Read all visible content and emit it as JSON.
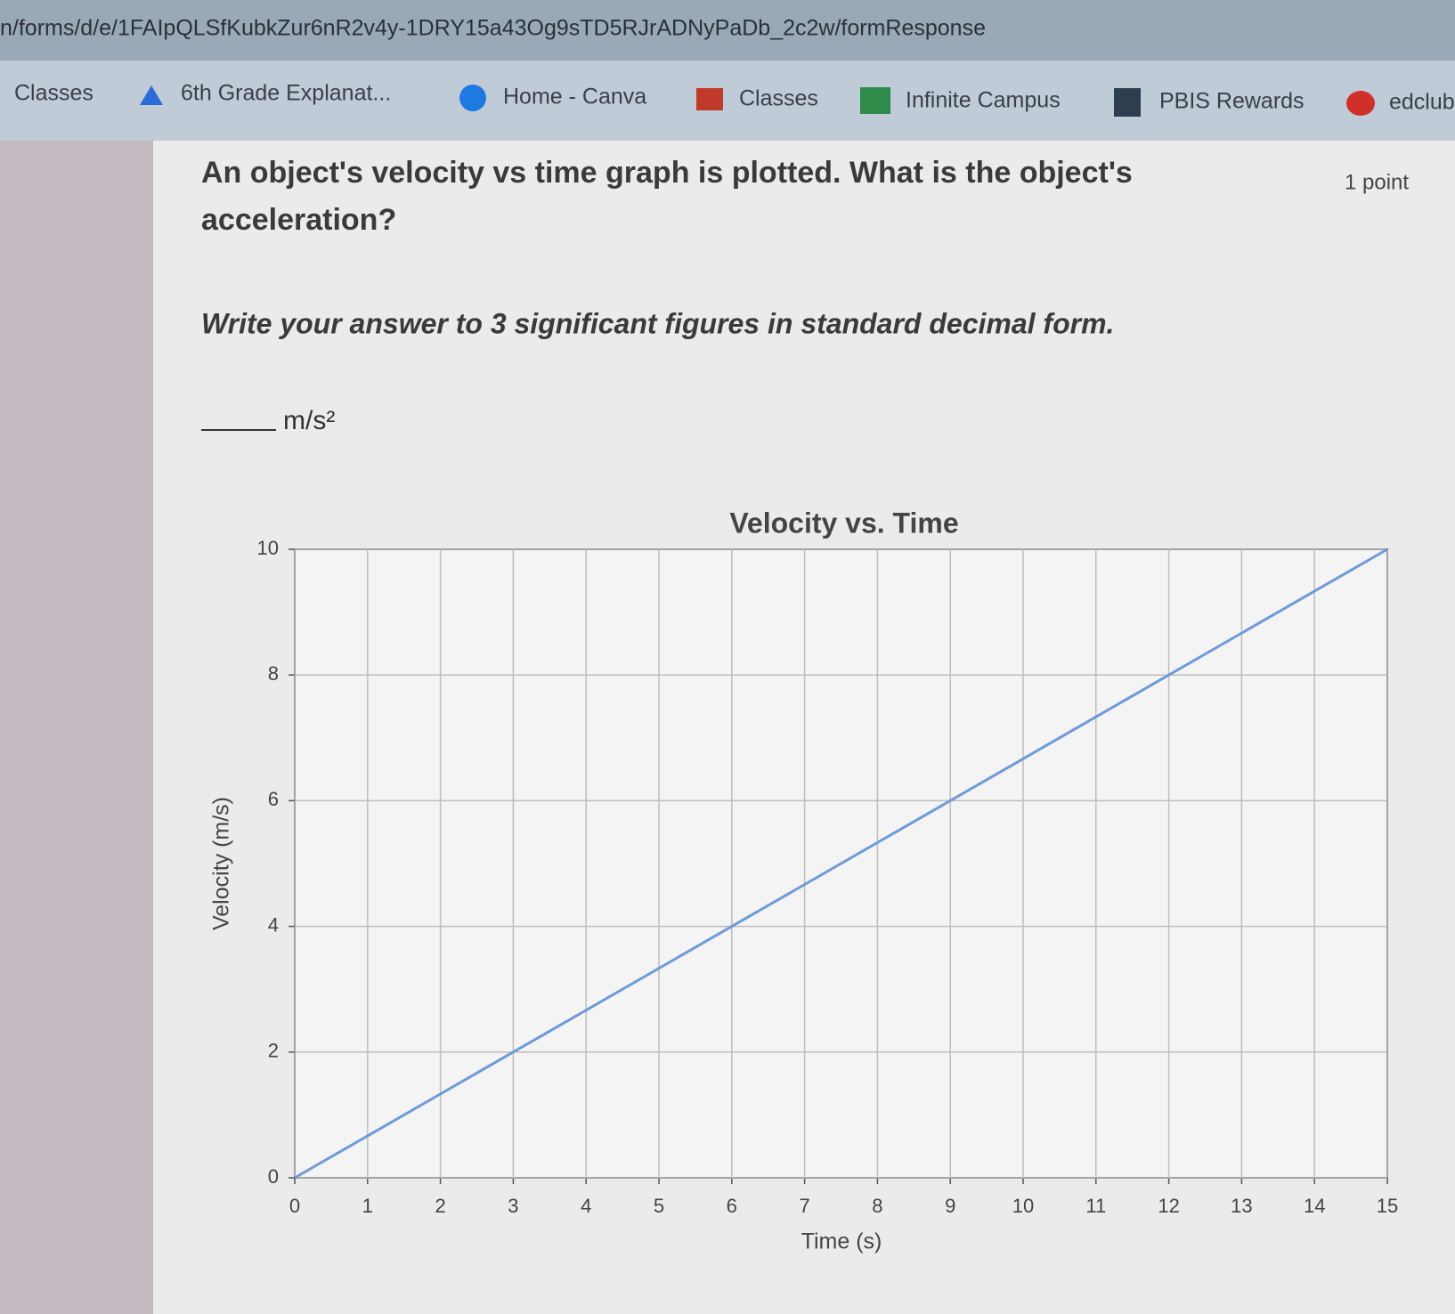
{
  "browser": {
    "url": "n/forms/d/e/1FAIpQLSfKubkZur6nR2v4y-1DRY15a43Og9sTD5RJrADNyPaDb_2c2w/formResponse",
    "bookmarks": [
      "Classes",
      "6th Grade Explanat...",
      "Home - Canva",
      "Classes",
      "Infinite Campus",
      "PBIS Rewards",
      "edclub"
    ]
  },
  "question": {
    "text_line1": "An object's velocity vs time graph is plotted. What is the object's",
    "text_line2": "acceleration?",
    "points": "1 point",
    "instruction": "Write your answer to 3 significant figures in standard decimal form.",
    "unit": "m/s²"
  },
  "chart_data": {
    "type": "line",
    "title": "Velocity vs. Time",
    "x_label": "Time (s)",
    "y_label": "Velocity (m/s)",
    "x": [
      0,
      15
    ],
    "series": [
      {
        "color": "#6f9ad8",
        "values": [
          0,
          10
        ]
      }
    ],
    "xlim": [
      0,
      15
    ],
    "ylim": [
      0,
      10
    ],
    "xticks": [
      0,
      1,
      2,
      3,
      4,
      5,
      6,
      7,
      8,
      9,
      10,
      11,
      12,
      13,
      14,
      15
    ],
    "yticks": [
      0,
      2,
      4,
      6,
      8,
      10
    ],
    "grid": true
  }
}
